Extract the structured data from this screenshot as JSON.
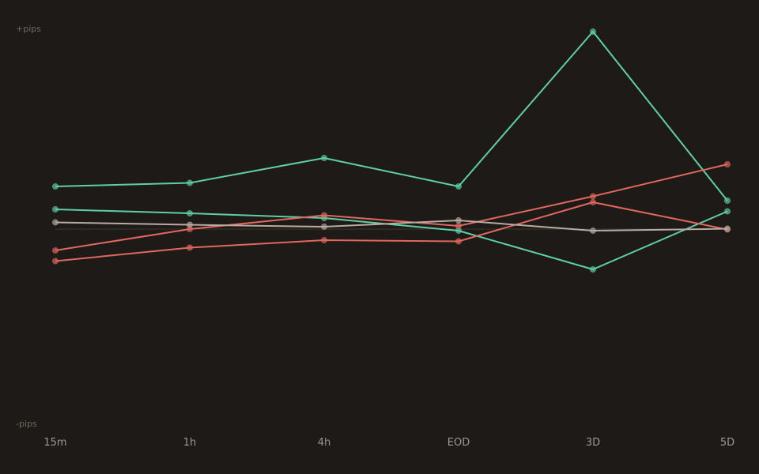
{
  "chart_data": {
    "type": "line",
    "title": "",
    "xlabel": "",
    "ylabel": "",
    "y_top_label": "+pips",
    "y_bottom_label": "-pips",
    "categories": [
      "15m",
      "1h",
      "4h",
      "EOD",
      "3D",
      "5D"
    ],
    "ylim": [
      -100,
      100
    ],
    "grid": false,
    "legend": "none",
    "zero_line": true,
    "series": [
      {
        "color": "#5fcfa6",
        "values": [
          21.6,
          23.4,
          36.0,
          21.6,
          100.0,
          14.4
        ]
      },
      {
        "color": "#5fcfa6",
        "values": [
          10.0,
          8.0,
          5.6,
          -0.8,
          -20.4,
          9.0
        ]
      },
      {
        "color": "#e0685e",
        "values": [
          -10.8,
          0.0,
          7.0,
          1.6,
          16.6,
          32.8
        ]
      },
      {
        "color": "#e0685e",
        "values": [
          -16.2,
          -9.4,
          -5.6,
          -6.2,
          13.6,
          -0.2
        ]
      },
      {
        "color": "#b8aca2",
        "values": [
          3.4,
          2.2,
          1.2,
          4.4,
          -0.8,
          0.2
        ]
      }
    ]
  }
}
